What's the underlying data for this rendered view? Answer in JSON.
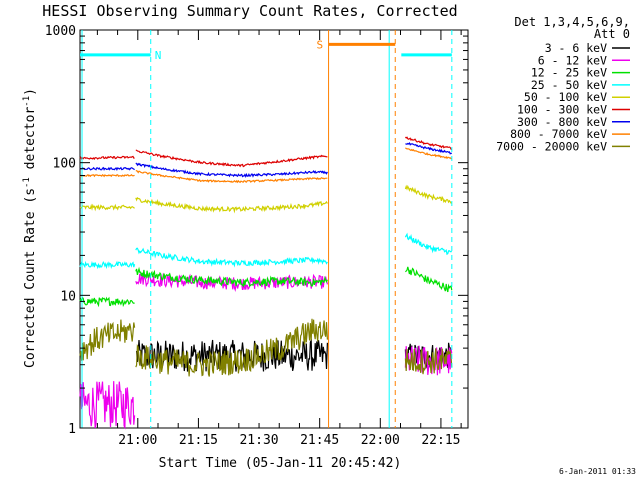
{
  "chart_data": {
    "type": "line",
    "title": "HESSI Observing Summary Count Rates, Corrected",
    "xlabel": "Start Time (05-Jan-11 20:45:42)",
    "ylabel_main": "Corrected Count Rate (s",
    "ylabel_sup1": "-1",
    "ylabel_mid": " detector",
    "ylabel_sup2": "-1",
    "ylabel_end": ")",
    "x_unit": "minutes after 20:45:42 UT",
    "xlim": [
      0,
      96
    ],
    "ylim": [
      1,
      1000
    ],
    "yscale": "log",
    "x_ticks": [
      {
        "t": 14.3,
        "label": "21:00"
      },
      {
        "t": 29.3,
        "label": "21:15"
      },
      {
        "t": 44.3,
        "label": "21:30"
      },
      {
        "t": 59.3,
        "label": "21:45"
      },
      {
        "t": 74.3,
        "label": "22:00"
      },
      {
        "t": 89.3,
        "label": "22:15"
      }
    ],
    "y_ticks": [
      {
        "v": 1,
        "label": "1"
      },
      {
        "v": 10,
        "label": "10"
      },
      {
        "v": 100,
        "label": "100"
      },
      {
        "v": 1000,
        "label": "1000"
      }
    ],
    "legend": {
      "placement": "right",
      "header1": "Det 1,3,4,5,6,9,",
      "header2": "Att 0"
    },
    "series": [
      {
        "name": "3 - 6 keV",
        "color": "#000000",
        "segments": [
          {
            "x": [
              14,
              20,
              30,
              40,
              50,
              58,
              61.2
            ],
            "y": [
              3.5,
              3.5,
              3.5,
              3.5,
              3.5,
              3.5,
              3.5
            ],
            "noise": 0.12
          },
          {
            "x": [
              80.5,
              92
            ],
            "y": [
              3.5,
              3.5
            ],
            "noise": 0.1
          }
        ]
      },
      {
        "name": "6 - 12 keV",
        "color": "#ee00ee",
        "segments": [
          {
            "x": [
              0,
              13.5
            ],
            "y": [
              1.5,
              1.5
            ],
            "noise": 0.18
          },
          {
            "x": [
              13.8,
              20,
              30,
              40,
              50,
              58,
              61.2
            ],
            "y": [
              13.5,
              13,
              12.5,
              12.3,
              12.5,
              12.6,
              12.5
            ],
            "noise": 0.05
          },
          {
            "x": [
              80.5,
              92
            ],
            "y": [
              3.2,
              3.2
            ],
            "noise": 0.12
          }
        ]
      },
      {
        "name": "12 - 25 keV",
        "color": "#00e000",
        "segments": [
          {
            "x": [
              0,
              13.5
            ],
            "y": [
              9,
              9
            ],
            "noise": 0.03
          },
          {
            "x": [
              13.8,
              20,
              30,
              40,
              50,
              58,
              61.2
            ],
            "y": [
              15,
              14,
              13,
              12.5,
              12.8,
              12.5,
              12.8
            ],
            "noise": 0.03
          },
          {
            "x": [
              80.5,
              86,
              92
            ],
            "y": [
              16,
              13,
              11
            ],
            "noise": 0.03
          }
        ]
      },
      {
        "name": "25 - 50 keV",
        "color": "#00ffff",
        "segments": [
          {
            "x": [
              0,
              13.5
            ],
            "y": [
              17,
              17
            ],
            "noise": 0.02
          },
          {
            "x": [
              13.8,
              20,
              30,
              40,
              50,
              58,
              61.2
            ],
            "y": [
              22,
              20,
              18,
              17.5,
              18,
              18.5,
              18
            ],
            "noise": 0.02
          },
          {
            "x": [
              80.5,
              86,
              92
            ],
            "y": [
              28,
              23,
              21
            ],
            "noise": 0.02
          }
        ]
      },
      {
        "name": "50 - 100 keV",
        "color": "#d0d000",
        "segments": [
          {
            "x": [
              0,
              13.5
            ],
            "y": [
              46,
              46
            ],
            "noise": 0.015
          },
          {
            "x": [
              13.8,
              20,
              30,
              40,
              50,
              58,
              61.2
            ],
            "y": [
              53,
              49,
              45,
              44.5,
              46,
              48,
              50
            ],
            "noise": 0.015
          },
          {
            "x": [
              80.5,
              86,
              92
            ],
            "y": [
              65,
              56,
              51
            ],
            "noise": 0.015
          }
        ]
      },
      {
        "name": "100 - 300 keV",
        "color": "#dd0000",
        "segments": [
          {
            "x": [
              0,
              13.5
            ],
            "y": [
              108,
              110
            ],
            "noise": 0.008
          },
          {
            "x": [
              13.8,
              20,
              30,
              40,
              50,
              58,
              61.2
            ],
            "y": [
              123,
              112,
              100,
              95,
              103,
              110,
              112
            ],
            "noise": 0.008
          },
          {
            "x": [
              80.5,
              86,
              92
            ],
            "y": [
              155,
              138,
              128
            ],
            "noise": 0.008
          }
        ]
      },
      {
        "name": "300 - 800 keV",
        "color": "#0000ee",
        "segments": [
          {
            "x": [
              0,
              13.5
            ],
            "y": [
              90,
              90
            ],
            "noise": 0.008
          },
          {
            "x": [
              13.8,
              20,
              30,
              40,
              50,
              58,
              61.2
            ],
            "y": [
              98,
              90,
              82,
              80,
              82,
              85,
              84
            ],
            "noise": 0.008
          },
          {
            "x": [
              80.5,
              86,
              92
            ],
            "y": [
              140,
              128,
              118
            ],
            "noise": 0.008
          }
        ]
      },
      {
        "name": "800 - 7000 keV",
        "color": "#ff8000",
        "segments": [
          {
            "x": [
              0,
              13.5
            ],
            "y": [
              80,
              80
            ],
            "noise": 0.006
          },
          {
            "x": [
              13.8,
              20,
              30,
              40,
              50,
              58,
              61.2
            ],
            "y": [
              86,
              80,
              73,
              72,
              74,
              76,
              76
            ],
            "noise": 0.006
          },
          {
            "x": [
              80.5,
              86,
              92
            ],
            "y": [
              128,
              116,
              108
            ],
            "noise": 0.006
          }
        ]
      },
      {
        "name": "7000 - 20000 keV",
        "color": "#808000",
        "segments": [
          {
            "x": [
              0,
              5,
              13.5
            ],
            "y": [
              3.8,
              4.8,
              5.5
            ],
            "noise": 0.1
          },
          {
            "x": [
              13.8,
              20,
              30,
              40,
              50,
              58,
              61.2
            ],
            "y": [
              3.5,
              3.2,
              3.0,
              3.2,
              4,
              5.5,
              5.5
            ],
            "noise": 0.1
          },
          {
            "x": [
              80.5,
              92
            ],
            "y": [
              3.2,
              3.2
            ],
            "noise": 0.1
          }
        ]
      }
    ],
    "markers": [
      {
        "label": "N",
        "color": "#00ffff",
        "bar_x": [
          0,
          17.5
        ],
        "bar_y": 650,
        "vlines": [
          17.5
        ],
        "label_x": 18.5
      },
      {
        "label": "S",
        "color": "#ff8000",
        "bar_x": [
          61.5,
          78
        ],
        "bar_y": 780,
        "vlines": [
          78
        ],
        "label_x": 58.5
      },
      {
        "label": "",
        "color": "#00ffff",
        "bar_x": [
          79.5,
          92
        ],
        "bar_y": 650,
        "vlines": [
          92
        ],
        "label_x": null
      }
    ],
    "solid_vlines": [
      {
        "x": 61.5,
        "color": "#ff8000"
      },
      {
        "x": 76.5,
        "color": "#00ffff"
      },
      {
        "x": 0.5,
        "color": "#00ffff"
      }
    ],
    "footer_date": "6-Jan-2011 01:33"
  }
}
